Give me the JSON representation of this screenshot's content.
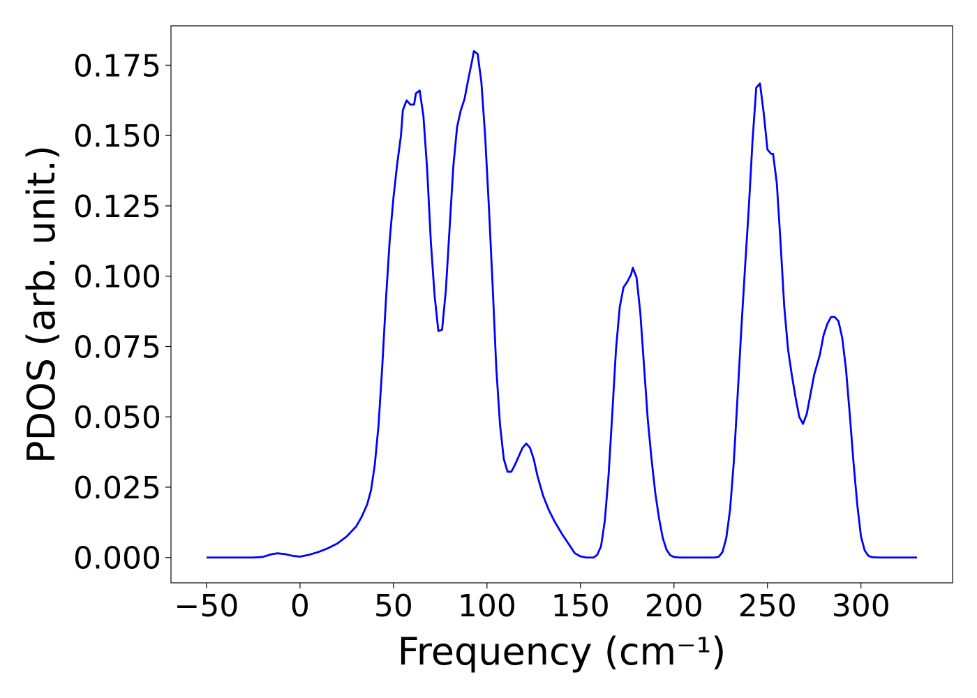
{
  "chart_data": {
    "type": "line",
    "xlabel": "Frequency (cm⁻¹)",
    "ylabel": "PDOS (arb. unit.)",
    "xlim": [
      -69,
      349
    ],
    "ylim": [
      -0.009,
      0.189
    ],
    "xticks": [
      {
        "value": -50,
        "label": "−50"
      },
      0,
      50,
      100,
      150,
      200,
      250,
      300
    ],
    "yticks": [
      {
        "value": 0,
        "label": "0.000"
      },
      0.025,
      {
        "value": 0.05,
        "label": "0.050"
      },
      0.075,
      {
        "value": 0.1,
        "label": "0.100"
      },
      0.125,
      {
        "value": 0.15,
        "label": "0.150"
      },
      0.175
    ],
    "series": [
      {
        "color": "#0000ff",
        "x": [
          -50,
          -25,
          -20,
          -15,
          -12,
          -8,
          -4,
          0,
          5,
          10,
          15,
          20,
          25,
          30,
          33,
          36,
          38,
          40,
          42,
          44,
          46,
          48,
          50,
          52,
          54,
          55,
          57,
          59,
          61,
          62,
          64,
          66,
          68,
          70,
          72,
          74,
          76,
          78,
          80,
          82,
          84,
          86,
          88,
          90,
          92,
          93,
          95,
          97,
          99,
          101,
          103,
          105,
          107,
          109,
          111,
          113,
          115,
          117,
          119,
          121,
          123,
          125,
          127,
          130,
          133,
          136,
          140,
          144,
          147,
          150,
          153,
          157,
          159,
          161,
          163,
          165,
          167,
          169,
          171,
          173,
          175,
          177,
          178,
          180,
          182,
          184,
          186,
          188,
          190,
          192,
          194,
          196,
          198,
          200,
          203,
          222,
          224,
          226,
          228,
          230,
          232,
          234,
          236,
          238,
          240,
          242,
          244,
          246,
          248,
          250,
          252,
          253,
          255,
          257,
          259,
          261,
          263,
          265,
          267,
          269,
          271,
          273,
          275,
          278,
          280,
          282,
          284,
          286,
          288,
          290,
          292,
          294,
          296,
          298,
          300,
          302,
          304,
          306,
          310,
          330
        ],
        "values": [
          0,
          0,
          0.0002,
          0.0012,
          0.0015,
          0.0012,
          0.0006,
          0.0003,
          0.001,
          0.002,
          0.0033,
          0.005,
          0.0075,
          0.011,
          0.0145,
          0.019,
          0.024,
          0.033,
          0.047,
          0.068,
          0.092,
          0.113,
          0.128,
          0.14,
          0.15,
          0.159,
          0.1625,
          0.161,
          0.161,
          0.165,
          0.166,
          0.157,
          0.138,
          0.112,
          0.093,
          0.0805,
          0.081,
          0.095,
          0.117,
          0.139,
          0.153,
          0.159,
          0.163,
          0.17,
          0.1765,
          0.18,
          0.179,
          0.169,
          0.15,
          0.125,
          0.097,
          0.067,
          0.047,
          0.035,
          0.0305,
          0.0305,
          0.033,
          0.036,
          0.039,
          0.0405,
          0.039,
          0.035,
          0.029,
          0.022,
          0.017,
          0.013,
          0.0085,
          0.0045,
          0.0015,
          0.0004,
          0,
          0,
          0.001,
          0.004,
          0.013,
          0.029,
          0.051,
          0.074,
          0.089,
          0.096,
          0.098,
          0.1005,
          0.103,
          0.0995,
          0.087,
          0.068,
          0.049,
          0.035,
          0.023,
          0.014,
          0.007,
          0.0028,
          0.0008,
          0.0002,
          0,
          0,
          0.0003,
          0.002,
          0.007,
          0.017,
          0.034,
          0.057,
          0.081,
          0.103,
          0.124,
          0.148,
          0.167,
          0.1685,
          0.158,
          0.145,
          0.1435,
          0.1435,
          0.133,
          0.112,
          0.089,
          0.074,
          0.065,
          0.057,
          0.05,
          0.0475,
          0.051,
          0.058,
          0.065,
          0.072,
          0.079,
          0.083,
          0.0855,
          0.0855,
          0.084,
          0.078,
          0.067,
          0.051,
          0.034,
          0.019,
          0.0075,
          0.0025,
          0.0006,
          0.0001,
          0,
          0
        ]
      }
    ]
  }
}
